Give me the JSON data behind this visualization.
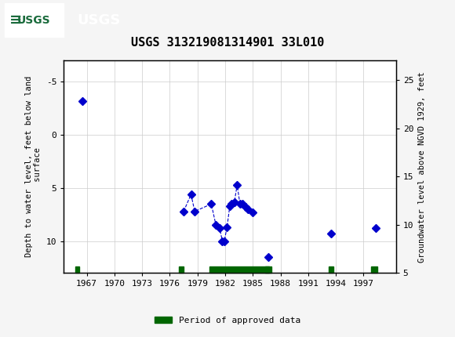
{
  "title": "USGS 313219081314901 33L010",
  "ylabel_left": "Depth to water level, feet below land\n surface",
  "ylabel_right": "Groundwater level above NGVD 1929, feet",
  "xlim": [
    1964.5,
    2000.5
  ],
  "ylim_left": [
    13,
    -7
  ],
  "ylim_right": [
    5,
    27
  ],
  "xticks": [
    1967,
    1970,
    1973,
    1976,
    1979,
    1982,
    1985,
    1988,
    1991,
    1994,
    1997
  ],
  "yticks_left": [
    -5,
    0,
    5,
    10
  ],
  "yticks_right": [
    5,
    10,
    15,
    20,
    25
  ],
  "background_color": "#f0f0f0",
  "plot_bg_color": "#ffffff",
  "header_color": "#1a6b3c",
  "data_points": [
    {
      "year": 1966.5,
      "depth": -3.2
    },
    {
      "year": 1977.5,
      "depth": 7.2
    },
    {
      "year": 1978.3,
      "depth": 5.6
    },
    {
      "year": 1978.7,
      "depth": 7.2
    },
    {
      "year": 1980.5,
      "depth": 6.5
    },
    {
      "year": 1981.0,
      "depth": 8.5
    },
    {
      "year": 1981.4,
      "depth": 8.8
    },
    {
      "year": 1981.7,
      "depth": 10.0
    },
    {
      "year": 1981.9,
      "depth": 10.0
    },
    {
      "year": 1982.2,
      "depth": 8.7
    },
    {
      "year": 1982.5,
      "depth": 6.7
    },
    {
      "year": 1982.7,
      "depth": 6.5
    },
    {
      "year": 1983.0,
      "depth": 6.3
    },
    {
      "year": 1983.3,
      "depth": 4.7
    },
    {
      "year": 1983.6,
      "depth": 6.5
    },
    {
      "year": 1983.9,
      "depth": 6.5
    },
    {
      "year": 1984.2,
      "depth": 6.8
    },
    {
      "year": 1984.5,
      "depth": 7.0
    },
    {
      "year": 1985.0,
      "depth": 7.3
    },
    {
      "year": 1986.7,
      "depth": 11.5
    },
    {
      "year": 1993.5,
      "depth": 9.3
    },
    {
      "year": 1998.3,
      "depth": 8.8
    }
  ],
  "connected_group": [
    {
      "year": 1977.5,
      "depth": 7.2
    },
    {
      "year": 1978.3,
      "depth": 5.6
    },
    {
      "year": 1978.7,
      "depth": 7.2
    },
    {
      "year": 1980.5,
      "depth": 6.5
    },
    {
      "year": 1981.0,
      "depth": 8.5
    },
    {
      "year": 1981.4,
      "depth": 8.8
    },
    {
      "year": 1981.7,
      "depth": 10.0
    },
    {
      "year": 1981.9,
      "depth": 10.0
    },
    {
      "year": 1982.2,
      "depth": 8.7
    },
    {
      "year": 1982.5,
      "depth": 6.7
    },
    {
      "year": 1982.7,
      "depth": 6.5
    },
    {
      "year": 1983.0,
      "depth": 6.3
    },
    {
      "year": 1983.3,
      "depth": 4.7
    },
    {
      "year": 1983.6,
      "depth": 6.5
    },
    {
      "year": 1983.9,
      "depth": 6.5
    },
    {
      "year": 1984.2,
      "depth": 6.8
    },
    {
      "year": 1984.5,
      "depth": 7.0
    },
    {
      "year": 1985.0,
      "depth": 7.3
    }
  ],
  "approved_periods": [
    {
      "start": 1965.8,
      "end": 1966.2
    },
    {
      "start": 1977.0,
      "end": 1977.5
    },
    {
      "start": 1980.3,
      "end": 1987.0
    },
    {
      "start": 1986.3,
      "end": 1986.8
    },
    {
      "start": 1993.2,
      "end": 1993.7
    },
    {
      "start": 1997.8,
      "end": 1998.5
    }
  ],
  "point_color": "#0000cc",
  "line_color": "#0000cc",
  "approved_color": "#006600",
  "marker_size": 5,
  "approved_bar_y": 12.7,
  "approved_bar_height": 0.6,
  "legend_label": "Period of approved data"
}
